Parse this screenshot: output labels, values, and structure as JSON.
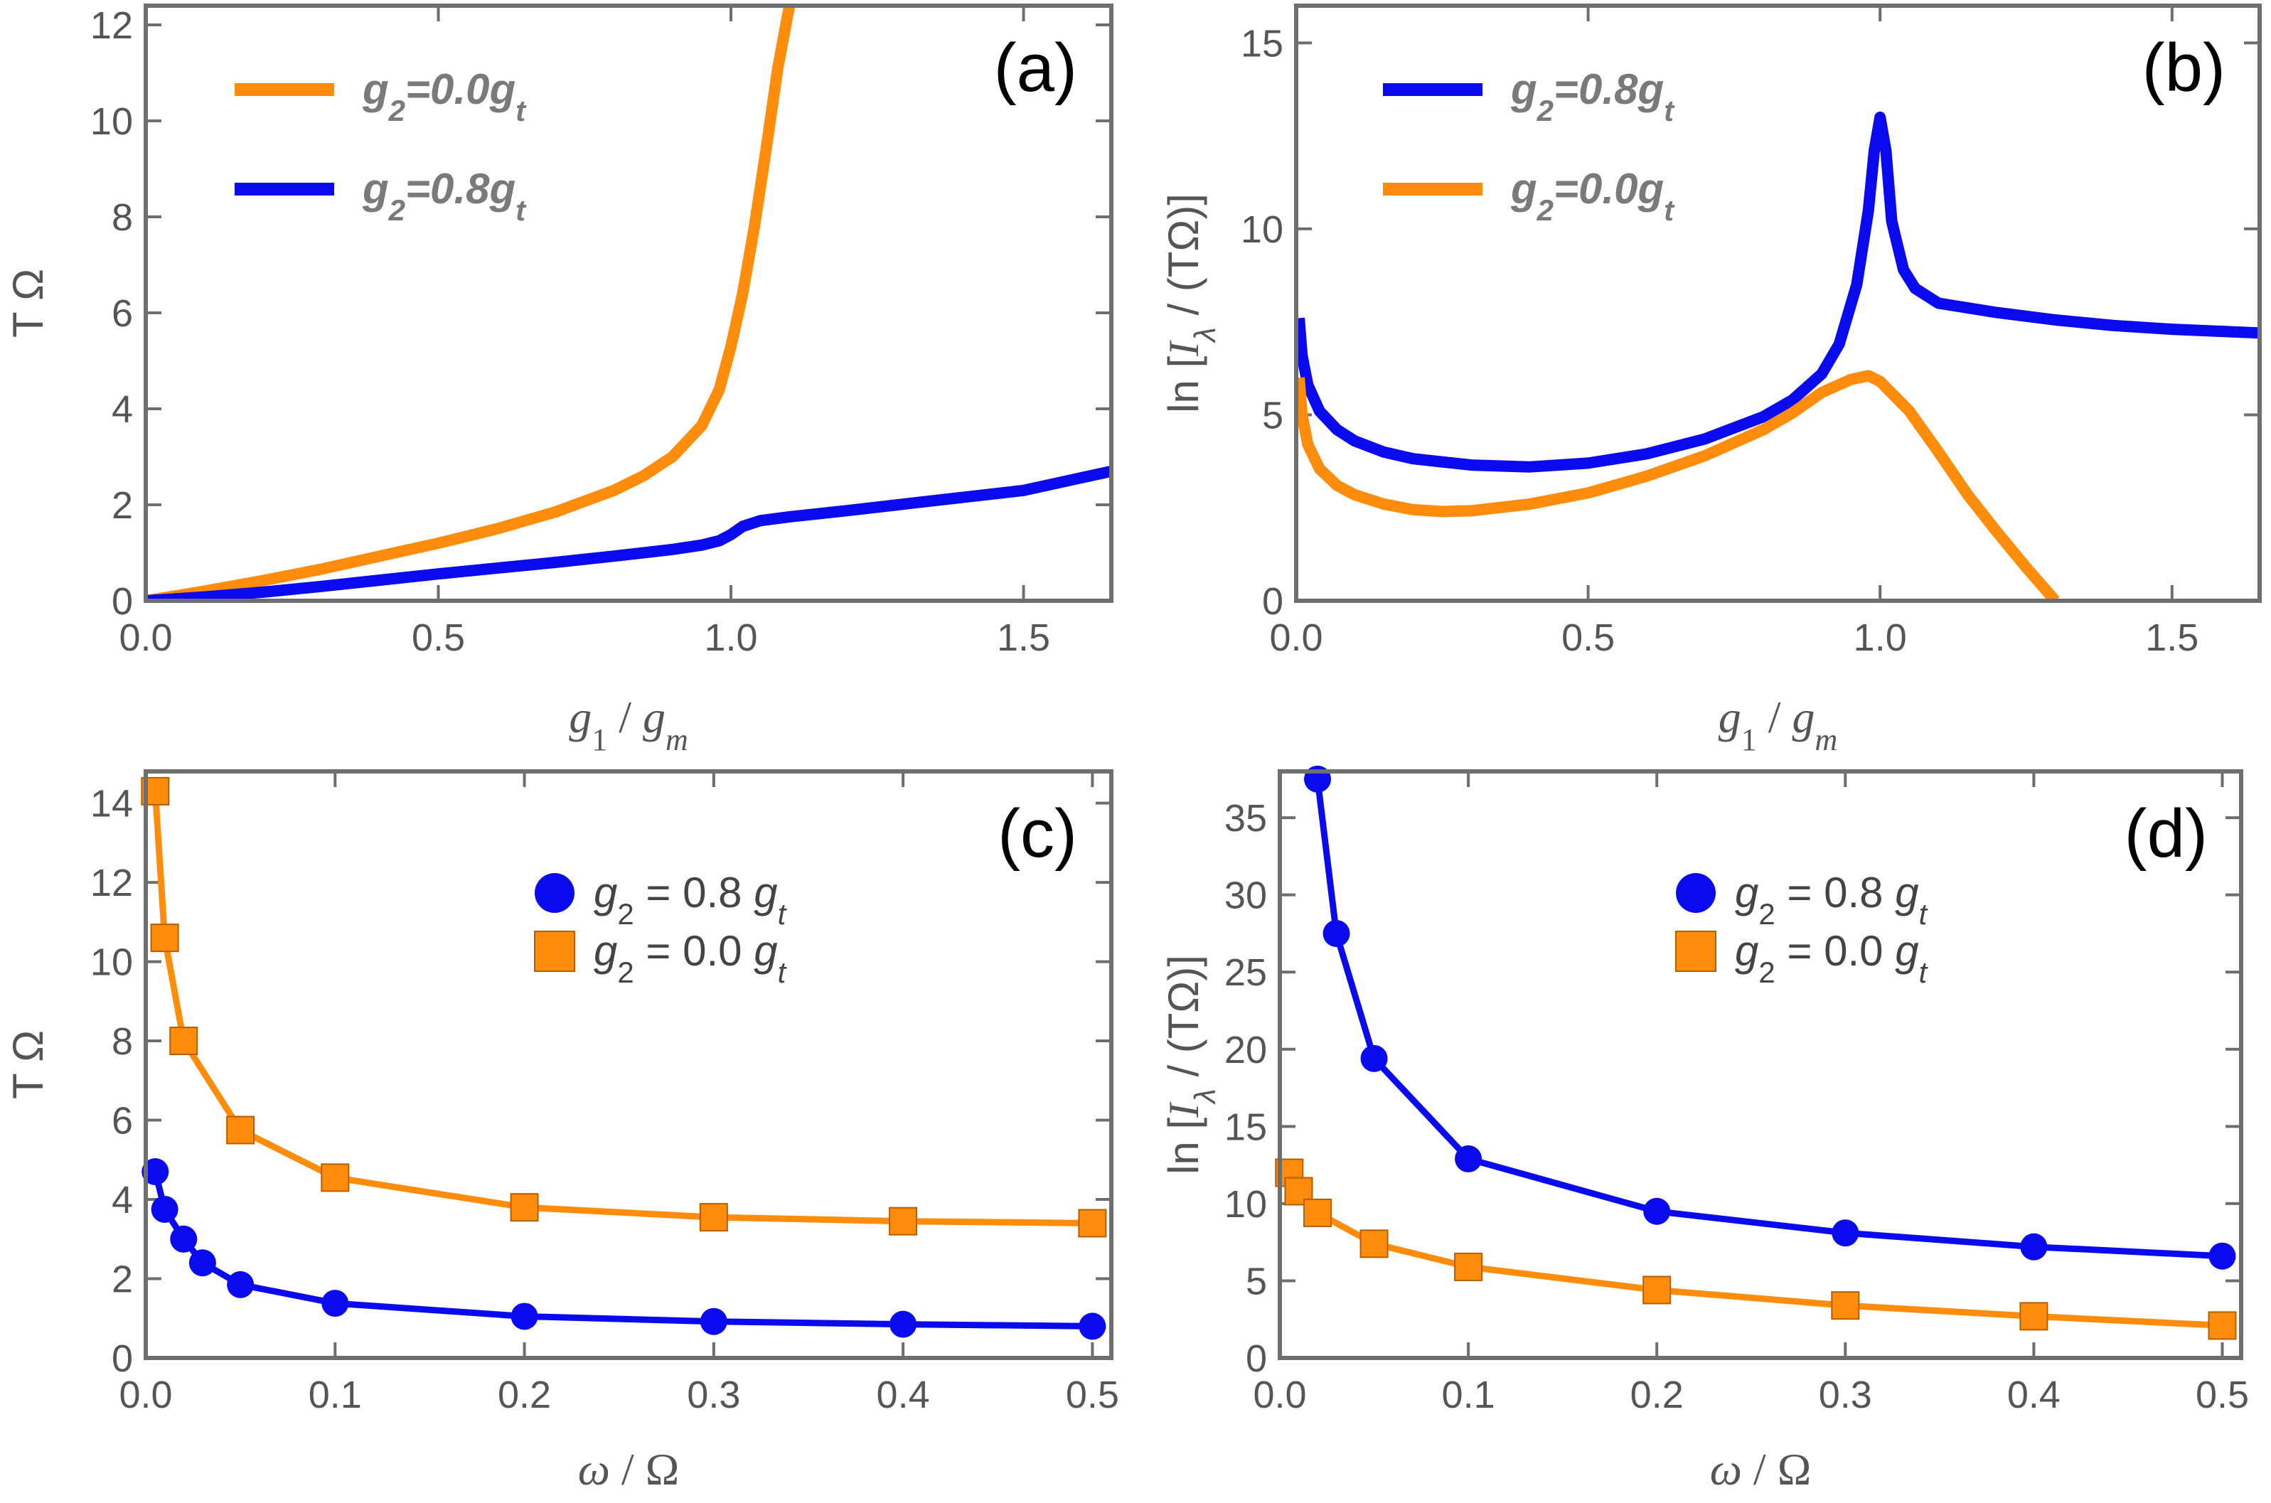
{
  "chart_data": [
    {
      "panel": "(a)",
      "type": "line",
      "xlabel": "g1 / gm",
      "ylabel": "T Ω",
      "xlim": [
        0,
        1.65
      ],
      "ylim": [
        0,
        12.4
      ],
      "xticks": [
        "0.0",
        "0.5",
        "1.0",
        "1.5"
      ],
      "yticks": [
        "0",
        "2",
        "4",
        "6",
        "8",
        "10",
        "12"
      ],
      "legend_position": "top-left",
      "series": [
        {
          "name": "g2=0.0gt",
          "color": "#ff8c0a",
          "x": [
            0,
            0.1,
            0.2,
            0.3,
            0.4,
            0.5,
            0.6,
            0.7,
            0.8,
            0.85,
            0.9,
            0.95,
            0.98,
            1.0,
            1.02,
            1.04,
            1.06,
            1.08,
            1.1
          ],
          "y": [
            0,
            0.2,
            0.42,
            0.66,
            0.93,
            1.2,
            1.5,
            1.85,
            2.3,
            2.6,
            3.0,
            3.65,
            4.4,
            5.3,
            6.4,
            7.8,
            9.4,
            11.1,
            12.4
          ]
        },
        {
          "name": "g2=0.8gt",
          "color": "#0a0aee",
          "x": [
            0,
            0.1,
            0.2,
            0.3,
            0.4,
            0.5,
            0.6,
            0.7,
            0.8,
            0.9,
            0.95,
            0.98,
            1.0,
            1.02,
            1.05,
            1.1,
            1.2,
            1.3,
            1.4,
            1.5,
            1.65
          ],
          "y": [
            0,
            0.08,
            0.18,
            0.3,
            0.43,
            0.56,
            0.68,
            0.8,
            0.93,
            1.07,
            1.16,
            1.25,
            1.38,
            1.55,
            1.67,
            1.75,
            1.88,
            2.02,
            2.16,
            2.3,
            2.7
          ]
        }
      ]
    },
    {
      "panel": "(b)",
      "type": "line",
      "xlabel": "g1 / gm",
      "ylabel": "ln [Iλ / (TΩ)]",
      "xlim": [
        0,
        1.65
      ],
      "ylim": [
        0,
        16
      ],
      "xticks": [
        "0.0",
        "0.5",
        "1.0",
        "1.5"
      ],
      "yticks": [
        "0",
        "5",
        "10",
        "15"
      ],
      "legend_position": "top-left",
      "series": [
        {
          "name": "g2=0.8gt",
          "color": "#0a0aee",
          "x": [
            0.005,
            0.01,
            0.02,
            0.04,
            0.07,
            0.1,
            0.15,
            0.2,
            0.3,
            0.4,
            0.5,
            0.6,
            0.7,
            0.8,
            0.85,
            0.9,
            0.93,
            0.96,
            0.98,
            0.99,
            1.0,
            1.01,
            1.02,
            1.04,
            1.06,
            1.1,
            1.2,
            1.3,
            1.4,
            1.5,
            1.65
          ],
          "y": [
            7.6,
            6.6,
            5.8,
            5.1,
            4.6,
            4.3,
            4.0,
            3.82,
            3.65,
            3.6,
            3.7,
            3.95,
            4.35,
            4.95,
            5.4,
            6.1,
            6.9,
            8.5,
            10.5,
            12.1,
            13.0,
            12.1,
            10.2,
            8.9,
            8.4,
            8.0,
            7.75,
            7.55,
            7.4,
            7.3,
            7.2
          ]
        },
        {
          "name": "g2=0.0gt",
          "color": "#ff8c0a",
          "x": [
            0.005,
            0.01,
            0.02,
            0.04,
            0.07,
            0.1,
            0.15,
            0.2,
            0.25,
            0.3,
            0.4,
            0.5,
            0.6,
            0.7,
            0.8,
            0.85,
            0.9,
            0.95,
            0.98,
            1.0,
            1.05,
            1.1,
            1.15,
            1.2,
            1.25,
            1.3
          ],
          "y": [
            6.0,
            5.0,
            4.2,
            3.55,
            3.1,
            2.85,
            2.6,
            2.45,
            2.4,
            2.42,
            2.6,
            2.9,
            3.35,
            3.9,
            4.6,
            5.05,
            5.6,
            5.95,
            6.05,
            5.9,
            5.1,
            4.0,
            2.85,
            1.85,
            0.9,
            0.0
          ]
        }
      ]
    },
    {
      "panel": "(c)",
      "type": "line",
      "xlabel": "ω / Ω",
      "ylabel": "T Ω",
      "xlim": [
        0,
        0.51
      ],
      "ylim": [
        0,
        14.8
      ],
      "xticks": [
        "0.0",
        "0.1",
        "0.2",
        "0.3",
        "0.4",
        "0.5"
      ],
      "yticks": [
        "0",
        "2",
        "4",
        "6",
        "8",
        "10",
        "12",
        "14"
      ],
      "legend_position": "top-right",
      "series": [
        {
          "name": "g2 = 0.8 gt",
          "color": "#0a0aee",
          "marker": "circle",
          "x": [
            0.005,
            0.01,
            0.02,
            0.03,
            0.05,
            0.1,
            0.2,
            0.3,
            0.4,
            0.5
          ],
          "y": [
            4.7,
            3.75,
            3.0,
            2.4,
            1.85,
            1.38,
            1.05,
            0.92,
            0.85,
            0.8
          ]
        },
        {
          "name": "g2 = 0.0 gt",
          "color": "#ff8c0a",
          "marker": "square",
          "x": [
            0.005,
            0.01,
            0.02,
            0.05,
            0.1,
            0.2,
            0.3,
            0.4,
            0.5
          ],
          "y": [
            14.3,
            10.6,
            8.0,
            5.75,
            4.55,
            3.8,
            3.55,
            3.45,
            3.4
          ]
        }
      ]
    },
    {
      "panel": "(d)",
      "type": "line",
      "xlabel": "ω / Ω",
      "ylabel": "ln [Iλ / (TΩ)]",
      "xlim": [
        0,
        0.51
      ],
      "ylim": [
        0,
        38
      ],
      "xticks": [
        "0.0",
        "0.1",
        "0.2",
        "0.3",
        "0.4",
        "0.5"
      ],
      "yticks": [
        "0",
        "5",
        "10",
        "15",
        "20",
        "25",
        "30",
        "35"
      ],
      "legend_position": "top-right",
      "series": [
        {
          "name": "g2 = 0.8 gt",
          "color": "#0a0aee",
          "marker": "circle",
          "x": [
            0.02,
            0.03,
            0.05,
            0.1,
            0.2,
            0.3,
            0.4,
            0.5
          ],
          "y": [
            37.5,
            27.5,
            19.4,
            12.9,
            9.5,
            8.1,
            7.2,
            6.6
          ]
        },
        {
          "name": "g2 = 0.0 gt",
          "color": "#ff8c0a",
          "marker": "square",
          "x": [
            0.005,
            0.01,
            0.02,
            0.05,
            0.1,
            0.2,
            0.3,
            0.4,
            0.5
          ],
          "y": [
            12.0,
            10.8,
            9.4,
            7.4,
            5.9,
            4.4,
            3.4,
            2.7,
            2.1
          ]
        }
      ]
    }
  ]
}
